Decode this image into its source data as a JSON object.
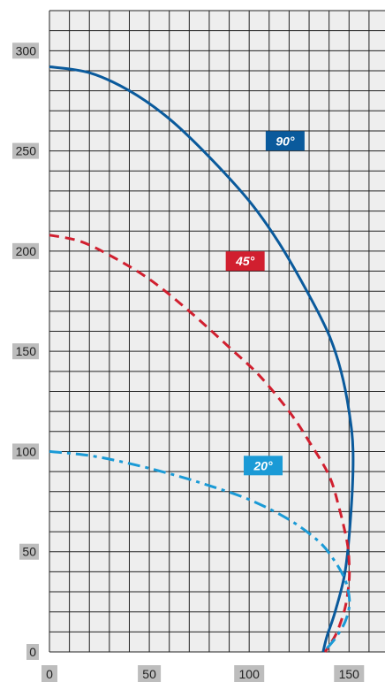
{
  "chart_data": {
    "type": "line",
    "title": "",
    "xlabel": "",
    "ylabel": "",
    "xlim": [
      0,
      168
    ],
    "ylim": [
      0,
      320
    ],
    "x_ticks": [
      0,
      50,
      100,
      150
    ],
    "y_ticks": [
      0,
      50,
      100,
      150,
      200,
      250,
      300
    ],
    "grid": true,
    "grid_step": 10,
    "background": "#eeeeee",
    "series": [
      {
        "name": "90°",
        "color": "#0a5a9c",
        "dash": "solid",
        "x": [
          0,
          20,
          40,
          60,
          80,
          100,
          115,
          130,
          140,
          146,
          150,
          152,
          151,
          148,
          143,
          139,
          137
        ],
        "y": [
          292,
          289,
          280,
          266,
          247,
          225,
          204,
          178,
          158,
          140,
          120,
          100,
          70,
          40,
          20,
          8,
          0
        ]
      },
      {
        "name": "45°",
        "color": "#d11f2f",
        "dash": "dashed",
        "x": [
          0,
          15,
          30,
          50,
          70,
          90,
          105,
          120,
          130,
          140,
          145,
          149,
          150,
          150,
          148,
          144,
          140,
          138
        ],
        "y": [
          208,
          205,
          198,
          186,
          170,
          152,
          138,
          120,
          105,
          88,
          72,
          55,
          45,
          35,
          22,
          10,
          3,
          0
        ]
      },
      {
        "name": "20°",
        "color": "#1a9ad6",
        "dash": "dashdot",
        "x": [
          0,
          20,
          40,
          60,
          80,
          100,
          120,
          135,
          143,
          148,
          150,
          150,
          148,
          144,
          140,
          137
        ],
        "y": [
          100,
          98,
          94,
          89,
          83,
          76,
          66,
          55,
          45,
          36,
          28,
          22,
          15,
          8,
          3,
          0
        ]
      }
    ],
    "annotations": [
      {
        "text": "90°",
        "x": 118,
        "y": 255,
        "color": "#0a5a9c"
      },
      {
        "text": "45°",
        "x": 98,
        "y": 195,
        "color": "#d11f2f"
      },
      {
        "text": "20°",
        "x": 107,
        "y": 93,
        "color": "#1a9ad6"
      }
    ]
  }
}
